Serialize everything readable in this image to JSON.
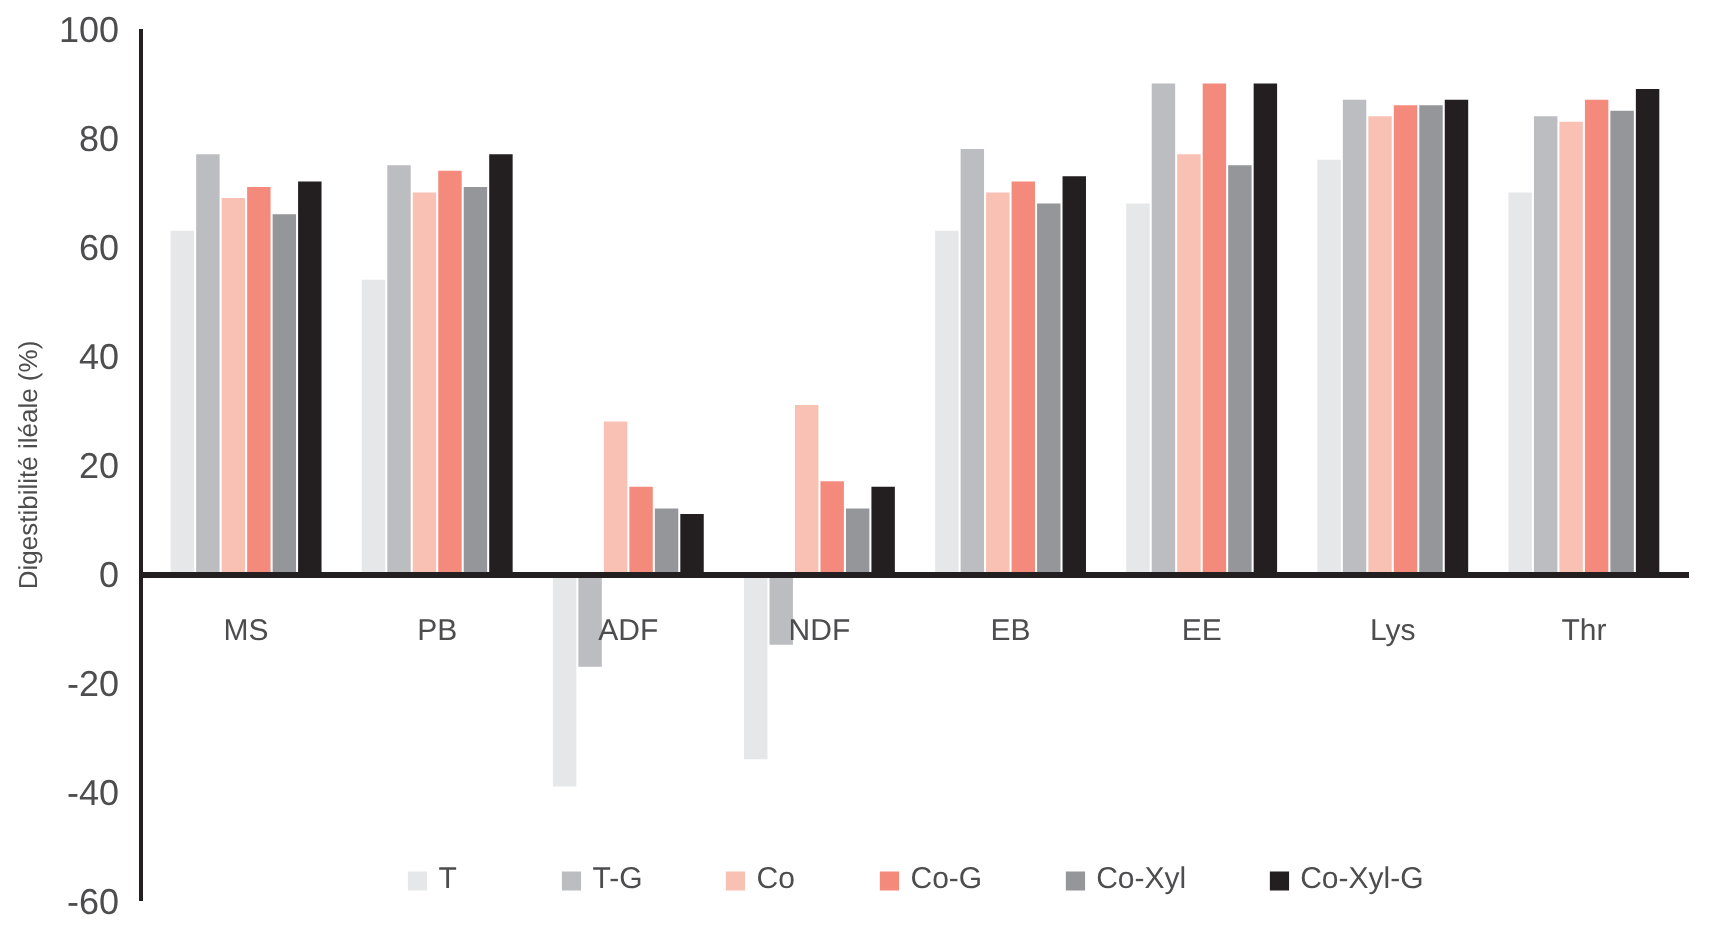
{
  "chart_data": {
    "type": "bar",
    "ylabel": "Digestibilité iléale (%)",
    "categories": [
      "MS",
      "PB",
      "ADF",
      "NDF",
      "EB",
      "EE",
      "Lys",
      "Thr"
    ],
    "series": [
      {
        "name": "T",
        "color": "#e6e7e8",
        "values": [
          63,
          54,
          -39,
          -34,
          63,
          68,
          76,
          70
        ]
      },
      {
        "name": "T-G",
        "color": "#bcbdc0",
        "values": [
          77,
          75,
          -17,
          -13,
          78,
          90,
          87,
          84
        ]
      },
      {
        "name": "Co",
        "color": "#f9c0b4",
        "values": [
          69,
          70,
          28,
          31,
          70,
          77,
          84,
          83
        ]
      },
      {
        "name": "Co-G",
        "color": "#f48a7c",
        "values": [
          71,
          74,
          16,
          17,
          72,
          90,
          86,
          87
        ]
      },
      {
        "name": "Co-Xyl",
        "color": "#959699",
        "values": [
          66,
          71,
          12,
          12,
          68,
          75,
          86,
          85
        ]
      },
      {
        "name": "Co-Xyl-G",
        "color": "#231f20",
        "values": [
          72,
          77,
          11,
          16,
          73,
          90,
          87,
          89
        ]
      }
    ],
    "ylim": [
      -60,
      100
    ],
    "yticks": [
      -60,
      -40,
      -20,
      0,
      20,
      40,
      60,
      80,
      100
    ],
    "grid": false,
    "legend": "bottom"
  }
}
